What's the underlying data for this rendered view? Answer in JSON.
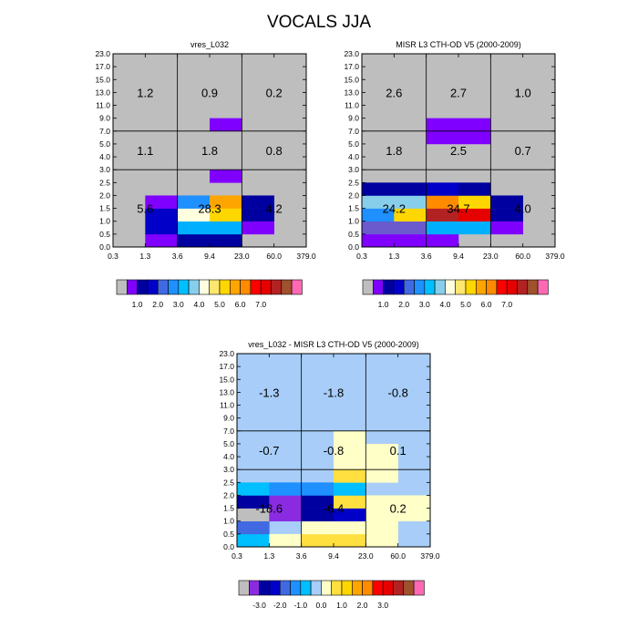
{
  "figure_title": "VOCALS JJA",
  "chart_data": [
    {
      "type": "heatmap",
      "title": "vres_L032",
      "x_tick_labels": [
        "0.3",
        "1.3",
        "3.6",
        "9.4",
        "23.0",
        "60.0",
        "379.0"
      ],
      "y_tick_labels": [
        "0.0",
        "0.5",
        "1.0",
        "1.5",
        "2.0",
        "2.5",
        "3.0",
        "4.0",
        "5.0",
        "7.0",
        "9.0",
        "11.0",
        "13.0",
        "15.0",
        "17.0",
        "23.0"
      ],
      "region_x_bounds": [
        0,
        2,
        4,
        6
      ],
      "region_y_bounds": [
        0,
        6,
        9,
        15
      ],
      "region_labels": [
        {
          "col": 0,
          "row": 0,
          "value": "5.6"
        },
        {
          "col": 1,
          "row": 0,
          "value": "28.3"
        },
        {
          "col": 2,
          "row": 0,
          "value": "4.2"
        },
        {
          "col": 0,
          "row": 1,
          "value": "1.1"
        },
        {
          "col": 1,
          "row": 1,
          "value": "1.8"
        },
        {
          "col": 2,
          "row": 1,
          "value": "0.8"
        },
        {
          "col": 0,
          "row": 2,
          "value": "1.2"
        },
        {
          "col": 1,
          "row": 2,
          "value": "0.9"
        },
        {
          "col": 2,
          "row": 2,
          "value": "0.2"
        }
      ],
      "background": "#bebebe",
      "cells": [
        {
          "x": 1,
          "y": 0,
          "c": "#8000ff"
        },
        {
          "x": 2,
          "y": 0,
          "c": "#0000a0"
        },
        {
          "x": 3,
          "y": 0,
          "c": "#0000a0"
        },
        {
          "x": 1,
          "y": 1,
          "c": "#0000c8"
        },
        {
          "x": 2,
          "y": 1,
          "c": "#00b0ff"
        },
        {
          "x": 3,
          "y": 1,
          "c": "#00b0ff"
        },
        {
          "x": 4,
          "y": 1,
          "c": "#8000ff"
        },
        {
          "x": 1,
          "y": 2,
          "c": "#0000c8"
        },
        {
          "x": 2,
          "y": 2,
          "c": "#ffffe0"
        },
        {
          "x": 3,
          "y": 2,
          "c": "#ffd700"
        },
        {
          "x": 4,
          "y": 2,
          "c": "#0000a0"
        },
        {
          "x": 1,
          "y": 3,
          "c": "#8000ff"
        },
        {
          "x": 2,
          "y": 3,
          "c": "#1e90ff"
        },
        {
          "x": 3,
          "y": 3,
          "c": "#ffa500"
        },
        {
          "x": 4,
          "y": 3,
          "c": "#0000a0"
        },
        {
          "x": 3,
          "y": 5,
          "c": "#8000ff"
        },
        {
          "x": 3,
          "y": 9,
          "c": "#8000ff"
        }
      ]
    },
    {
      "type": "heatmap",
      "title": "MISR L3 CTH-OD V5 (2000-2009)",
      "x_tick_labels": [
        "0.3",
        "1.3",
        "3.6",
        "9.4",
        "23.0",
        "60.0",
        "379.0"
      ],
      "y_tick_labels": [
        "0.0",
        "0.5",
        "1.0",
        "1.5",
        "2.0",
        "2.5",
        "3.0",
        "4.0",
        "5.0",
        "7.0",
        "9.0",
        "11.0",
        "13.0",
        "15.0",
        "17.0",
        "23.0"
      ],
      "region_x_bounds": [
        0,
        2,
        4,
        6
      ],
      "region_y_bounds": [
        0,
        6,
        9,
        15
      ],
      "region_labels": [
        {
          "col": 0,
          "row": 0,
          "value": "24.2"
        },
        {
          "col": 1,
          "row": 0,
          "value": "34.7"
        },
        {
          "col": 2,
          "row": 0,
          "value": "4.0"
        },
        {
          "col": 0,
          "row": 1,
          "value": "1.8"
        },
        {
          "col": 1,
          "row": 1,
          "value": "2.5"
        },
        {
          "col": 2,
          "row": 1,
          "value": "0.7"
        },
        {
          "col": 0,
          "row": 2,
          "value": "2.6"
        },
        {
          "col": 1,
          "row": 2,
          "value": "2.7"
        },
        {
          "col": 2,
          "row": 2,
          "value": "1.0"
        }
      ],
      "background": "#bebebe",
      "cells": [
        {
          "x": 0,
          "y": 0,
          "c": "#8000ff"
        },
        {
          "x": 1,
          "y": 0,
          "c": "#8000ff"
        },
        {
          "x": 2,
          "y": 0,
          "c": "#8000ff"
        },
        {
          "x": 0,
          "y": 1,
          "c": "#6a5acd"
        },
        {
          "x": 1,
          "y": 1,
          "c": "#6a5acd"
        },
        {
          "x": 2,
          "y": 1,
          "c": "#00b0ff"
        },
        {
          "x": 3,
          "y": 1,
          "c": "#00b0ff"
        },
        {
          "x": 4,
          "y": 1,
          "c": "#8000ff"
        },
        {
          "x": 0,
          "y": 2,
          "c": "#1e90ff"
        },
        {
          "x": 1,
          "y": 2,
          "c": "#ffd700"
        },
        {
          "x": 2,
          "y": 2,
          "c": "#b22222"
        },
        {
          "x": 3,
          "y": 2,
          "c": "#e60000"
        },
        {
          "x": 4,
          "y": 2,
          "c": "#0000a0"
        },
        {
          "x": 0,
          "y": 3,
          "c": "#87ceeb"
        },
        {
          "x": 1,
          "y": 3,
          "c": "#87ceeb"
        },
        {
          "x": 2,
          "y": 3,
          "c": "#ff8c00"
        },
        {
          "x": 3,
          "y": 3,
          "c": "#ffd700"
        },
        {
          "x": 4,
          "y": 3,
          "c": "#0000a0"
        },
        {
          "x": 0,
          "y": 4,
          "c": "#0000a0"
        },
        {
          "x": 1,
          "y": 4,
          "c": "#0000a0"
        },
        {
          "x": 2,
          "y": 4,
          "c": "#0000c8"
        },
        {
          "x": 3,
          "y": 4,
          "c": "#0000a0"
        },
        {
          "x": 2,
          "y": 8,
          "c": "#8000ff"
        },
        {
          "x": 3,
          "y": 8,
          "c": "#8000ff"
        },
        {
          "x": 2,
          "y": 9,
          "c": "#8000ff"
        },
        {
          "x": 3,
          "y": 9,
          "c": "#8000ff"
        }
      ]
    },
    {
      "type": "heatmap",
      "title": "vres_L032 - MISR L3 CTH-OD V5 (2000-2009)",
      "x_tick_labels": [
        "0.3",
        "1.3",
        "3.6",
        "9.4",
        "23.0",
        "60.0",
        "379.0"
      ],
      "y_tick_labels": [
        "0.0",
        "0.5",
        "1.0",
        "1.5",
        "2.0",
        "2.5",
        "3.0",
        "4.0",
        "5.0",
        "7.0",
        "9.0",
        "11.0",
        "13.0",
        "15.0",
        "17.0",
        "23.0"
      ],
      "region_x_bounds": [
        0,
        2,
        4,
        6
      ],
      "region_y_bounds": [
        0,
        6,
        9,
        15
      ],
      "region_labels": [
        {
          "col": 0,
          "row": 0,
          "value": "-18.6"
        },
        {
          "col": 1,
          "row": 0,
          "value": "-6.4"
        },
        {
          "col": 2,
          "row": 0,
          "value": "0.2"
        },
        {
          "col": 0,
          "row": 1,
          "value": "-0.7"
        },
        {
          "col": 1,
          "row": 1,
          "value": "-0.8"
        },
        {
          "col": 2,
          "row": 1,
          "value": "0.1"
        },
        {
          "col": 0,
          "row": 2,
          "value": "-1.3"
        },
        {
          "col": 1,
          "row": 2,
          "value": "-1.8"
        },
        {
          "col": 2,
          "row": 2,
          "value": "-0.8"
        }
      ],
      "background": "#a7cdf8",
      "cells": [
        {
          "x": 0,
          "y": 0,
          "c": "#00bfff"
        },
        {
          "x": 1,
          "y": 0,
          "c": "#ffffc8"
        },
        {
          "x": 2,
          "y": 0,
          "c": "#ffe040"
        },
        {
          "x": 3,
          "y": 0,
          "c": "#ffe040"
        },
        {
          "x": 4,
          "y": 0,
          "c": "#ffffc8"
        },
        {
          "x": 0,
          "y": 1,
          "c": "#4169e1"
        },
        {
          "x": 2,
          "y": 1,
          "c": "#ffffc8"
        },
        {
          "x": 3,
          "y": 1,
          "c": "#ffffc8"
        },
        {
          "x": 4,
          "y": 1,
          "c": "#ffffc8"
        },
        {
          "x": 0,
          "y": 2,
          "c": "#bebebe"
        },
        {
          "x": 1,
          "y": 2,
          "c": "#8a2be2"
        },
        {
          "x": 2,
          "y": 2,
          "c": "#0000a0"
        },
        {
          "x": 3,
          "y": 2,
          "c": "#0000c8"
        },
        {
          "x": 4,
          "y": 2,
          "c": "#ffffc8"
        },
        {
          "x": 5,
          "y": 2,
          "c": "#ffffc8"
        },
        {
          "x": 0,
          "y": 3,
          "c": "#0000a0"
        },
        {
          "x": 1,
          "y": 3,
          "c": "#8a2be2"
        },
        {
          "x": 2,
          "y": 3,
          "c": "#0000a0"
        },
        {
          "x": 3,
          "y": 3,
          "c": "#ffe040"
        },
        {
          "x": 4,
          "y": 3,
          "c": "#ffffc8"
        },
        {
          "x": 5,
          "y": 3,
          "c": "#ffffc8"
        },
        {
          "x": 0,
          "y": 4,
          "c": "#00bfff"
        },
        {
          "x": 1,
          "y": 4,
          "c": "#1e90ff"
        },
        {
          "x": 2,
          "y": 4,
          "c": "#1e90ff"
        },
        {
          "x": 3,
          "y": 4,
          "c": "#00bfff"
        },
        {
          "x": 3,
          "y": 5,
          "c": "#ffe040"
        },
        {
          "x": 4,
          "y": 5,
          "c": "#ffffc8"
        },
        {
          "x": 3,
          "y": 6,
          "c": "#ffffc8"
        },
        {
          "x": 4,
          "y": 6,
          "c": "#ffffc8"
        },
        {
          "x": 3,
          "y": 7,
          "c": "#ffffc8"
        },
        {
          "x": 4,
          "y": 7,
          "c": "#ffffc8"
        },
        {
          "x": 3,
          "y": 8,
          "c": "#ffffc8"
        }
      ]
    }
  ],
  "colorbars": [
    {
      "colors": [
        "#bebebe",
        "#8000ff",
        "#0000a0",
        "#0000c8",
        "#4169e1",
        "#1e90ff",
        "#00bfff",
        "#87ceeb",
        "#ffffe0",
        "#ffe66e",
        "#ffd700",
        "#ffa500",
        "#ff8c00",
        "#ff0000",
        "#e60000",
        "#b22222",
        "#a0522d",
        "#ff69b4"
      ],
      "tick_labels": [
        {
          "after_box": 2,
          "label": "1.0"
        },
        {
          "after_box": 4,
          "label": "2.0"
        },
        {
          "after_box": 6,
          "label": "3.0"
        },
        {
          "after_box": 8,
          "label": "4.0"
        },
        {
          "after_box": 10,
          "label": "5.0"
        },
        {
          "after_box": 12,
          "label": "6.0"
        },
        {
          "after_box": 14,
          "label": "7.0"
        }
      ]
    },
    {
      "colors": [
        "#bebebe",
        "#8000ff",
        "#0000a0",
        "#0000c8",
        "#4169e1",
        "#1e90ff",
        "#00bfff",
        "#87ceeb",
        "#ffffe0",
        "#ffe66e",
        "#ffd700",
        "#ffa500",
        "#ff8c00",
        "#ff0000",
        "#e60000",
        "#b22222",
        "#a0522d",
        "#ff69b4"
      ],
      "tick_labels": [
        {
          "after_box": 2,
          "label": "1.0"
        },
        {
          "after_box": 4,
          "label": "2.0"
        },
        {
          "after_box": 6,
          "label": "3.0"
        },
        {
          "after_box": 8,
          "label": "4.0"
        },
        {
          "after_box": 10,
          "label": "5.0"
        },
        {
          "after_box": 12,
          "label": "6.0"
        },
        {
          "after_box": 14,
          "label": "7.0"
        }
      ]
    },
    {
      "colors": [
        "#bebebe",
        "#8a2be2",
        "#0000a0",
        "#0000c8",
        "#4169e1",
        "#1e90ff",
        "#00bfff",
        "#a7cdf8",
        "#ffffc8",
        "#ffe040",
        "#ffd700",
        "#ffa500",
        "#ff8c00",
        "#ff0000",
        "#e60000",
        "#b22222",
        "#a0522d",
        "#ff69b4"
      ],
      "tick_labels": [
        {
          "after_box": 2,
          "label": "-3.0"
        },
        {
          "after_box": 4,
          "label": "-2.0"
        },
        {
          "after_box": 6,
          "label": "-1.0"
        },
        {
          "after_box": 8,
          "label": "0.0"
        },
        {
          "after_box": 10,
          "label": "1.0"
        },
        {
          "after_box": 12,
          "label": "2.0"
        },
        {
          "after_box": 14,
          "label": "3.0"
        }
      ]
    }
  ]
}
